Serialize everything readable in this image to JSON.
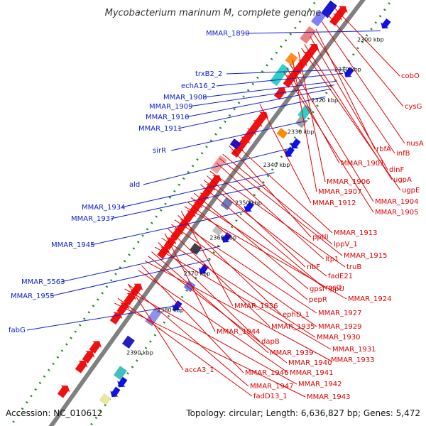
{
  "title": "Mycobacterium marinum M, complete genome",
  "footer": {
    "accession": "Accession: NC_010612",
    "summary": "Topology: circular; Length: 6,636,827 bp; Genes: 5,472"
  },
  "ticks": [
    {
      "label": "2300 kbp"
    },
    {
      "label": "2310 kbp"
    },
    {
      "label": "2320 kbp"
    },
    {
      "label": "2330 kbp"
    },
    {
      "label": "2340 kbp"
    },
    {
      "label": "2350 kbp"
    },
    {
      "label": "2360 kbp"
    },
    {
      "label": "2370 kbp"
    },
    {
      "label": "2380 kbp"
    },
    {
      "label": "2390 kbp"
    }
  ],
  "labels_left": [
    {
      "text": "MMAR_1890"
    },
    {
      "text": "trxB2_2"
    },
    {
      "text": "echA16_2"
    },
    {
      "text": "MMAR_1908"
    },
    {
      "text": "MMAR_1909"
    },
    {
      "text": "MMAR_1910"
    },
    {
      "text": "MMAR_1911"
    },
    {
      "text": "sirR"
    },
    {
      "text": "ald"
    },
    {
      "text": "MMAR_1934"
    },
    {
      "text": "MMAR_1937"
    },
    {
      "text": "MMAR_1945"
    },
    {
      "text": "MMAR_5563"
    },
    {
      "text": "MMAR_1955"
    },
    {
      "text": "fabG"
    }
  ],
  "labels_right": [
    {
      "text": "cobO"
    },
    {
      "text": "cysG"
    },
    {
      "text": "nusA"
    },
    {
      "text": "rbfA"
    },
    {
      "text": "infB"
    },
    {
      "text": "MMAR_1901"
    },
    {
      "text": "dinF"
    },
    {
      "text": "ugpA"
    },
    {
      "text": "MMAR_1906"
    },
    {
      "text": "ugpE"
    },
    {
      "text": "MMAR_1907"
    },
    {
      "text": "MMAR_1904"
    },
    {
      "text": "MMAR_1912"
    },
    {
      "text": "MMAR_1905"
    },
    {
      "text": "MMAR_1913"
    },
    {
      "text": "pptII"
    },
    {
      "text": "lppV_1"
    },
    {
      "text": "MMAR_1915"
    },
    {
      "text": "ltp1"
    },
    {
      "text": "truB"
    },
    {
      "text": "ribF"
    },
    {
      "text": "fadE21"
    },
    {
      "text": "rpsO"
    },
    {
      "text": "gpsI"
    },
    {
      "text": "lppU"
    },
    {
      "text": "pepR"
    },
    {
      "text": "MMAR_1924"
    },
    {
      "text": "MMAR_1936"
    },
    {
      "text": "ephD_1"
    },
    {
      "text": "MMAR_1927"
    },
    {
      "text": "MMAR_1929"
    },
    {
      "text": "MMAR_1935"
    },
    {
      "text": "MMAR_1944"
    },
    {
      "text": "MMAR_1930"
    },
    {
      "text": "dapB"
    },
    {
      "text": "MMAR_1931"
    },
    {
      "text": "MMAR_1939"
    },
    {
      "text": "MMAR_1940"
    },
    {
      "text": "MMAR_1933"
    },
    {
      "text": "accA3_1"
    },
    {
      "text": "MMAR_1946"
    },
    {
      "text": "MMAR_1941"
    },
    {
      "text": "MMAR_1947"
    },
    {
      "text": "MMAR_1942"
    },
    {
      "text": "fadD13_1"
    },
    {
      "text": "MMAR_1943"
    }
  ],
  "colors": {
    "backbone": "#808080",
    "forward_strand": "#1010e8",
    "reverse_strand": "#f01010",
    "gc_dots": "#1a8a1a",
    "label_blue": "#1020c8",
    "label_red": "#e00000"
  }
}
